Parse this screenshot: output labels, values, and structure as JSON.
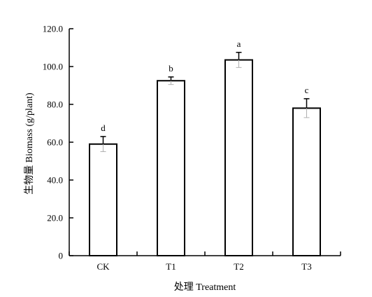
{
  "chart_data": {
    "type": "bar",
    "categories": [
      "CK",
      "T1",
      "T2",
      "T3"
    ],
    "values": [
      59.0,
      92.5,
      103.5,
      78.0
    ],
    "errors": [
      4.0,
      2.0,
      4.0,
      5.0
    ],
    "significance": [
      "d",
      "b",
      "a",
      "c"
    ],
    "ylim": [
      0,
      120
    ],
    "yticks": [
      0,
      20,
      40,
      60,
      80,
      100,
      120
    ],
    "ytick_labels": [
      "0",
      "20.0",
      "40.0",
      "60.0",
      "80.0",
      "100.0",
      "120.0"
    ],
    "ylabel": "生物量 Biomass (g/plant)",
    "xlabel": "处理 Treatment",
    "title": "",
    "grid": false,
    "legend": "none",
    "colors": {
      "bar_fill": "#ffffff",
      "bar_stroke": "#000000",
      "error_bar": "#b0b0b0",
      "axis": "#000000"
    }
  }
}
